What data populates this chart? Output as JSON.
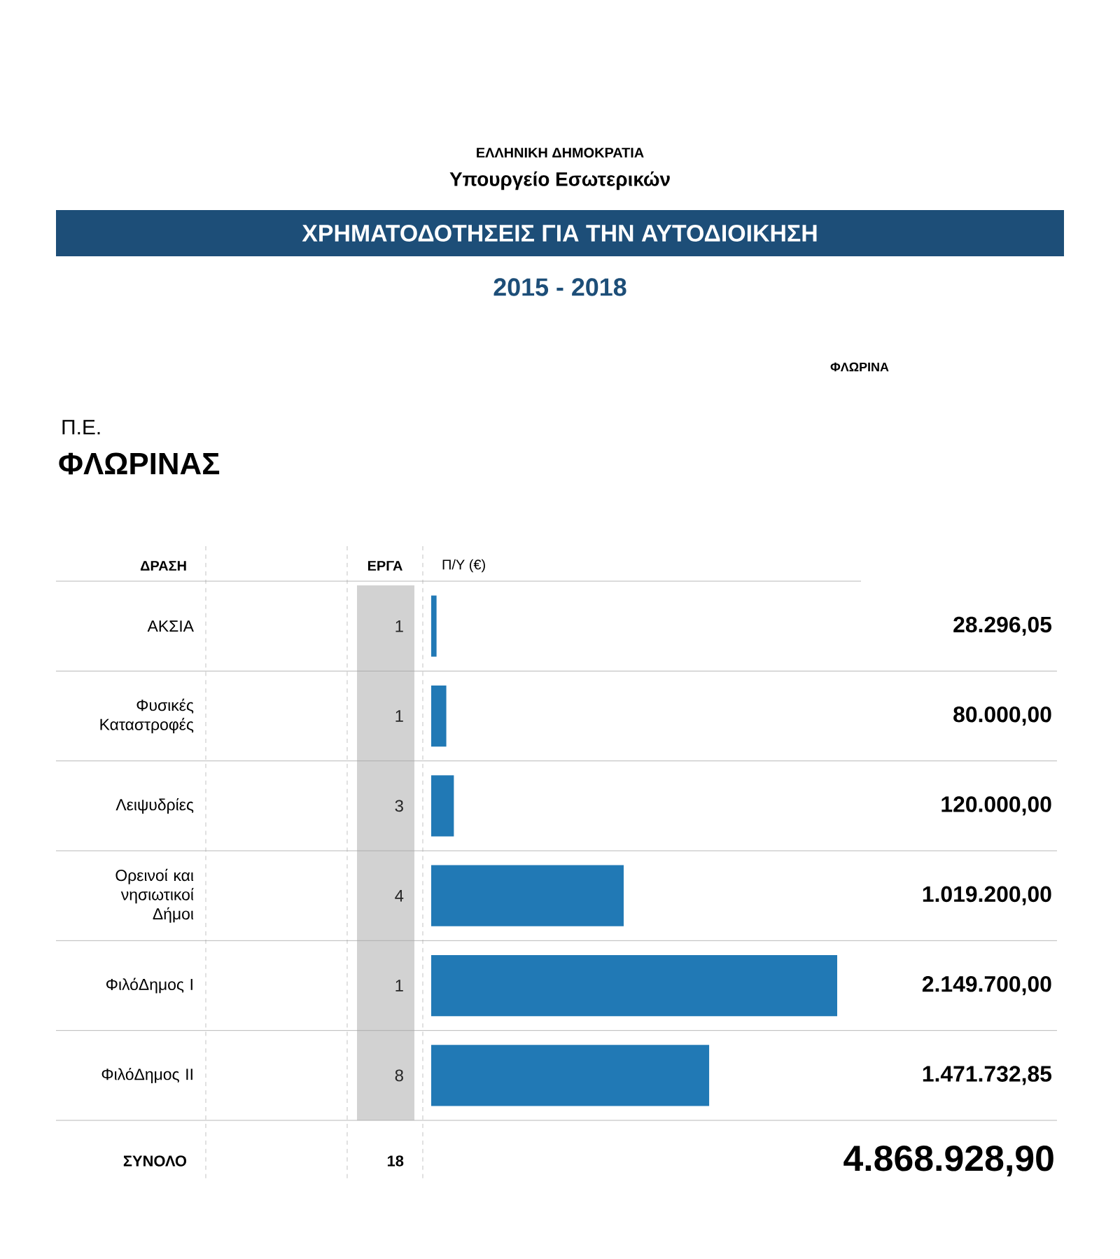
{
  "chart_data": {
    "type": "bar",
    "orientation": "horizontal",
    "title": "ΧΡΗΜΑΤΟΔΟΤΗΣΕΙΣ ΓΙΑ ΤΗΝ ΑΥΤΟΔΙΟΙΚΗΣΗ",
    "subtitle": "2015 - 2018",
    "xlabel": "Π/Υ (€)",
    "categories": [
      "ΑΚΣΙΑ",
      "Φυσικές Καταστροφές",
      "Λειψυδρίες",
      "Ορεινοί και νησιωτικοί Δήμοι",
      "ΦιλόΔημος Ι",
      "ΦιλόΔημος ΙΙ"
    ],
    "values": [
      28296.05,
      80000.0,
      120000.0,
      1019200.0,
      2149700.0,
      1471732.85
    ],
    "color": "#2179b5",
    "value_labels": [
      "28.296,05",
      "80.000,00",
      "120.000,00",
      "1.019.200,00",
      "2.149.700,00",
      "1.471.732,85"
    ],
    "annotations": [
      "ΕΛΛΗΝΙΚΗ ΔΗΜΟΚΡΑΤΙΑ",
      "Υπουργείο Εσωτερικών",
      "Π.Ε.",
      "ΦΛΩΡΙΝΑΣ",
      "ΦΛΩΡΙΝΑ",
      "ΔΡΑΣΗ",
      "ΕΡΓΑ",
      "1",
      "1",
      "3",
      "4",
      "1",
      "8",
      "ΣΥΝΟΛΟ",
      "18",
      "4.868.928,90"
    ]
  }
}
